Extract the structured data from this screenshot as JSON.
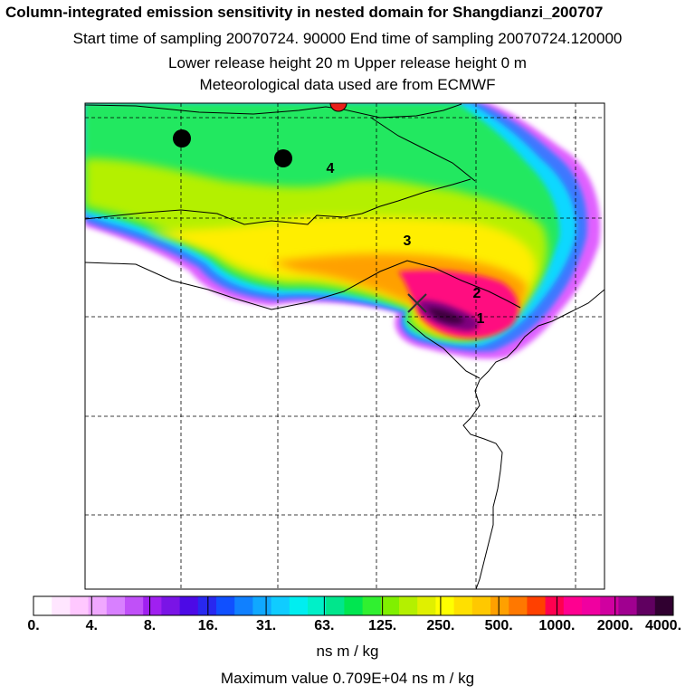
{
  "header": {
    "title": "Column-integrated emission sensitivity in nested domain for Shangdianzi_200707",
    "sampling_line": "Start time of sampling 20070724. 90000     End time of sampling 20070724.120000",
    "release_line": "Lower release height   20 m          Upper release height    0 m",
    "met_line": "Meteorological data used are from ECMWF"
  },
  "map": {
    "contour_labels": [
      "1",
      "2",
      "3",
      "4"
    ],
    "station_marker": "receptor-x-marker"
  },
  "colorbar": {
    "tick_labels": [
      "0.",
      "4.",
      "8.",
      "16.",
      "31.",
      "63.",
      "125.",
      "250.",
      "500.",
      "1000.",
      "2000.",
      "4000."
    ],
    "colors": [
      "#ffffff",
      "#ffe6ff",
      "#ffc8ff",
      "#f0a8ff",
      "#d880ff",
      "#c050f8",
      "#a020f0",
      "#7a14e6",
      "#4c0ae6",
      "#2828f0",
      "#1050ff",
      "#1080ff",
      "#10a8ff",
      "#10ccff",
      "#00eef0",
      "#00f0c8",
      "#00e68c",
      "#00e650",
      "#30f030",
      "#80f000",
      "#b4f000",
      "#e0f000",
      "#ffff00",
      "#ffe000",
      "#ffc800",
      "#ffa000",
      "#ff7800",
      "#ff4000",
      "#ff0050",
      "#ff0090",
      "#f000a0",
      "#d000a0",
      "#a00090",
      "#600060",
      "#300030"
    ],
    "units": "ns m / kg"
  },
  "footer": {
    "max_value": "Maximum value  0.709E+04 ns m / kg"
  }
}
